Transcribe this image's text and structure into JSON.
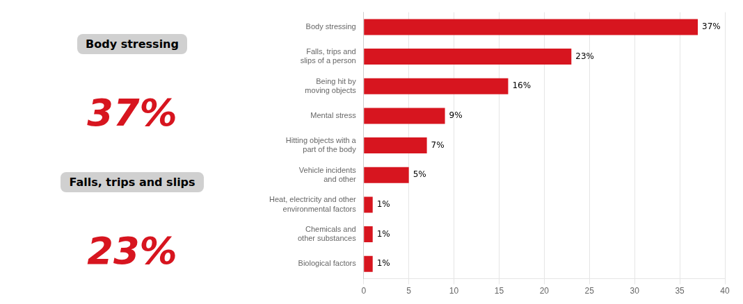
{
  "chart_data": {
    "type": "bar",
    "orientation": "horizontal",
    "categories": [
      "Biological factors",
      "Chemicals and\nother substances",
      "Heat, electricity and other\nenvironmental factors",
      "Vehicle incidents\nand other",
      "Hitting objects with a\npart of the body",
      "Mental stress",
      "Being hit by\nmoving objects",
      "Falls, trips and\nslips of a person",
      "Body stressing"
    ],
    "values": [
      1,
      1,
      1,
      5,
      7,
      9,
      16,
      23,
      37
    ],
    "value_labels": [
      "1%",
      "1%",
      "1%",
      "5%",
      "7%",
      "9%",
      "16%",
      "23%",
      "37%"
    ],
    "data_labels": true,
    "color": "#D7151F",
    "xlim": [
      0,
      40
    ],
    "xticks": [
      0,
      5,
      10,
      15,
      20,
      25,
      30,
      35,
      40
    ],
    "grid": "x",
    "annotations": [
      "Body stressing",
      "37%",
      "Falls, trips and slips",
      "23%"
    ]
  }
}
